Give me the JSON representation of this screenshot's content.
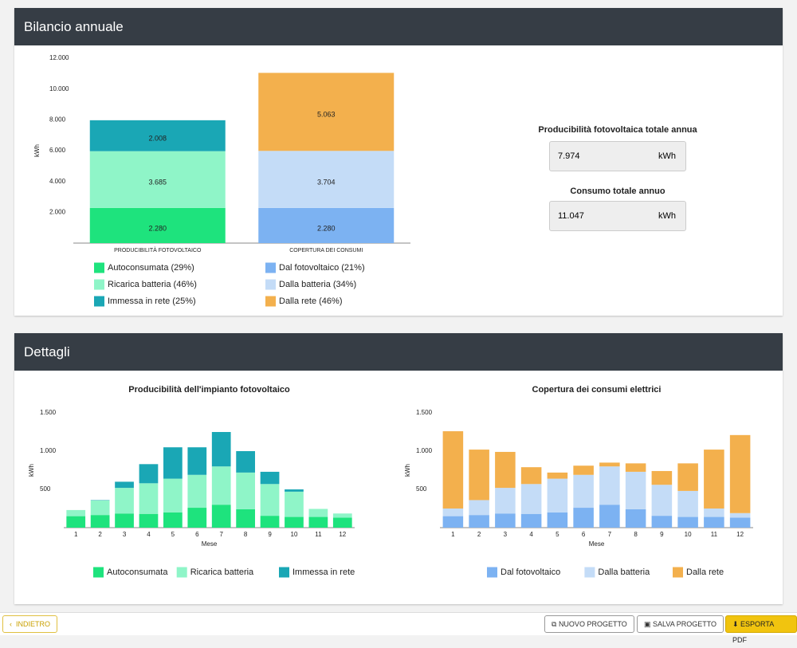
{
  "panels": [
    {
      "title": "Bilancio annuale"
    },
    {
      "title": "Dettagli"
    }
  ],
  "summary": [
    {
      "title": "Producibilità fotovoltaica totale annua",
      "value": "7.974",
      "unit": "kWh"
    },
    {
      "title": "Consumo totale annuo",
      "value": "11.047",
      "unit": "kWh"
    }
  ],
  "buttons": {
    "back": "INDIETRO",
    "new": "NUOVO PROGETTO",
    "save": "SALVA PROGETTO",
    "export": "ESPORTA PDF"
  },
  "chart_data": [
    {
      "type": "stacked-bar",
      "ylabel": "kWh",
      "categories": [
        "PRODUCIBILITÀ FOTOVOLTAICO",
        "COPERTURA DEI CONSUMI"
      ],
      "ylim": [
        0,
        12000
      ],
      "yticks": [
        {
          "value": 2000,
          "label": "2.000"
        },
        {
          "value": 4000,
          "label": "4.000"
        },
        {
          "value": 6000,
          "label": "6.000"
        },
        {
          "value": 8000,
          "label": "8.000"
        },
        {
          "value": 10000,
          "label": "10.000"
        },
        {
          "value": 12000,
          "label": "12.000"
        }
      ],
      "series": [
        {
          "name": "Autoconsumata (29%)",
          "color": "#1ee37d",
          "values": [
            2280,
            null
          ],
          "value_labels": [
            "2.280",
            null
          ]
        },
        {
          "name": "Ricarica batteria (46%)",
          "color": "#8ff5c8",
          "values": [
            3685,
            null
          ],
          "value_labels": [
            "3.685",
            null
          ]
        },
        {
          "name": "Immessa in rete (25%)",
          "color": "#1aa7b5",
          "values": [
            2008,
            null
          ],
          "value_labels": [
            "2.008",
            null
          ]
        },
        {
          "name": "Dal fotovoltaico (21%)",
          "color": "#7cb2f2",
          "values": [
            null,
            2280
          ],
          "value_labels": [
            null,
            "2.280"
          ]
        },
        {
          "name": "Dalla batteria (34%)",
          "color": "#c4dcf7",
          "values": [
            null,
            3704
          ],
          "value_labels": [
            null,
            "3.704"
          ]
        },
        {
          "name": "Dalla rete (46%)",
          "color": "#f3b04d",
          "values": [
            null,
            5063
          ],
          "value_labels": [
            null,
            "5.063"
          ]
        }
      ]
    },
    {
      "type": "stacked-bar",
      "title": "Producibilità dell'impianto fotovoltaico",
      "xlabel": "Mese",
      "ylabel": "kWh",
      "categories": [
        "1",
        "2",
        "3",
        "4",
        "5",
        "6",
        "7",
        "8",
        "9",
        "10",
        "11",
        "12"
      ],
      "ylim": [
        0,
        1500
      ],
      "yticks": [
        500,
        {
          "value": 1000,
          "label": "1.000"
        },
        {
          "value": 1500,
          "label": "1.500"
        }
      ],
      "series": [
        {
          "name": "Autoconsumata",
          "color": "#1ee37d",
          "values": [
            150,
            165,
            185,
            180,
            200,
            260,
            300,
            240,
            155,
            140,
            140,
            130
          ]
        },
        {
          "name": "Ricarica batteria",
          "color": "#8ff5c8",
          "values": [
            80,
            190,
            335,
            400,
            440,
            430,
            500,
            480,
            415,
            330,
            105,
            55
          ]
        },
        {
          "name": "Immessa in rete",
          "color": "#1aa7b5",
          "values": [
            0,
            5,
            80,
            250,
            410,
            360,
            450,
            280,
            160,
            30,
            0,
            0
          ]
        }
      ]
    },
    {
      "type": "stacked-bar",
      "title": "Copertura dei consumi elettrici",
      "xlabel": "Mese",
      "ylabel": "kWh",
      "categories": [
        "1",
        "2",
        "3",
        "4",
        "5",
        "6",
        "7",
        "8",
        "9",
        "10",
        "11",
        "12"
      ],
      "ylim": [
        0,
        1500
      ],
      "yticks": [
        500,
        {
          "value": 1000,
          "label": "1.000"
        },
        {
          "value": 1500,
          "label": "1.500"
        }
      ],
      "series": [
        {
          "name": "Dal fotovoltaico",
          "color": "#7cb2f2",
          "values": [
            150,
            165,
            185,
            180,
            200,
            260,
            300,
            240,
            155,
            140,
            140,
            130
          ]
        },
        {
          "name": "Dalla batteria",
          "color": "#c4dcf7",
          "values": [
            100,
            195,
            335,
            390,
            440,
            430,
            500,
            490,
            405,
            340,
            110,
            60
          ]
        },
        {
          "name": "Dalla rete",
          "color": "#f3b04d",
          "values": [
            1010,
            660,
            470,
            220,
            80,
            120,
            50,
            110,
            180,
            360,
            770,
            1020
          ]
        }
      ]
    }
  ]
}
